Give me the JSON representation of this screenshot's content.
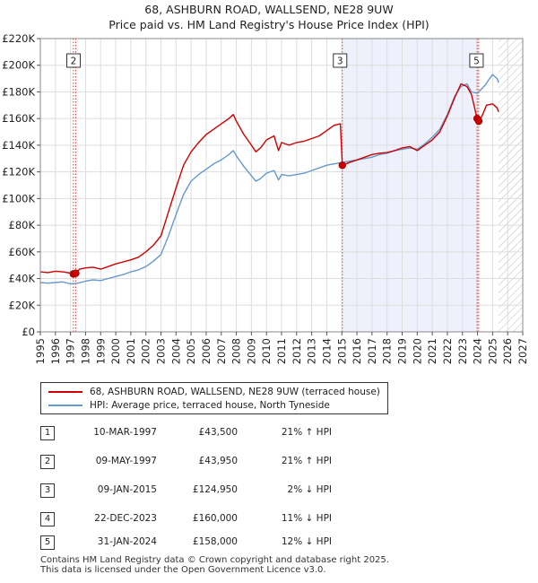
{
  "title": {
    "line1": "68, ASHBURN ROAD, WALLSEND, NE28 9UW",
    "line2": "Price paid vs. HM Land Registry's House Price Index (HPI)"
  },
  "colors": {
    "property": "#cc0000",
    "hpi": "#6699cc",
    "shade": "#eef1fb",
    "marker_line": "#dd4444"
  },
  "legend": {
    "property": "68, ASHBURN ROAD, WALLSEND, NE28 9UW (terraced house)",
    "hpi": "HPI: Average price, terraced house, North Tyneside"
  },
  "chart_data": {
    "type": "line",
    "title": "68, ASHBURN ROAD, WALLSEND, NE28 9UW — Price paid vs. HM Land Registry's House Price Index (HPI)",
    "xlabel": "",
    "ylabel": "",
    "xlim": [
      1995,
      2027
    ],
    "ylim": [
      0,
      220000
    ],
    "yticks": [
      0,
      20000,
      40000,
      60000,
      80000,
      100000,
      120000,
      140000,
      160000,
      180000,
      200000,
      220000
    ],
    "ytick_labels": [
      "£0",
      "£20K",
      "£40K",
      "£60K",
      "£80K",
      "£100K",
      "£120K",
      "£140K",
      "£160K",
      "£180K",
      "£200K",
      "£220K"
    ],
    "xticks": [
      1995,
      1996,
      1997,
      1998,
      1999,
      2000,
      2001,
      2002,
      2003,
      2004,
      2005,
      2006,
      2007,
      2008,
      2009,
      2010,
      2011,
      2012,
      2013,
      2014,
      2015,
      2016,
      2017,
      2018,
      2019,
      2020,
      2021,
      2022,
      2023,
      2024,
      2025,
      2026,
      2027
    ],
    "shaded_range": [
      2015.03,
      2024.08
    ],
    "hatched_from": 2025.4,
    "series": [
      {
        "name": "68, ASHBURN ROAD, WALLSEND, NE28 9UW (terraced house)",
        "x": [
          1995.0,
          1995.5,
          1996.0,
          1996.5,
          1997.0,
          1997.19,
          1997.35,
          1997.6,
          1998.0,
          1998.5,
          1999.0,
          1999.5,
          2000.0,
          2000.5,
          2001.0,
          2001.5,
          2002.0,
          2002.5,
          2003.0,
          2003.5,
          2004.0,
          2004.5,
          2005.0,
          2005.5,
          2006.0,
          2006.5,
          2007.0,
          2007.5,
          2007.8,
          2008.0,
          2008.5,
          2009.0,
          2009.3,
          2009.6,
          2010.0,
          2010.5,
          2010.8,
          2011.0,
          2011.5,
          2012.0,
          2012.5,
          2013.0,
          2013.5,
          2014.0,
          2014.5,
          2014.9,
          2015.03,
          2015.5,
          2016.0,
          2016.5,
          2017.0,
          2017.5,
          2018.0,
          2018.5,
          2019.0,
          2019.5,
          2020.0,
          2020.5,
          2021.0,
          2021.5,
          2022.0,
          2022.5,
          2022.9,
          2023.3,
          2023.6,
          2023.97,
          2024.08,
          2024.3,
          2024.6,
          2025.0,
          2025.3,
          2025.4
        ],
        "values": [
          45000,
          44500,
          45500,
          45000,
          44000,
          43500,
          43950,
          47000,
          48000,
          48500,
          47000,
          49000,
          51000,
          52500,
          54000,
          56000,
          60000,
          65000,
          72000,
          90000,
          108000,
          125000,
          135000,
          142000,
          148000,
          152000,
          156000,
          160000,
          163000,
          158000,
          148000,
          140000,
          135000,
          138000,
          144000,
          147000,
          136000,
          142000,
          140000,
          142000,
          143000,
          145000,
          147000,
          151000,
          155000,
          156000,
          124950,
          127000,
          129000,
          131000,
          133000,
          134000,
          134500,
          136000,
          138000,
          139000,
          136000,
          140000,
          144000,
          150000,
          162000,
          176000,
          186000,
          184000,
          178000,
          160000,
          158000,
          162000,
          170000,
          171000,
          168000,
          165000
        ]
      },
      {
        "name": "HPI: Average price, terraced house, North Tyneside",
        "x": [
          1995.0,
          1995.5,
          1996.0,
          1996.5,
          1997.0,
          1997.5,
          1998.0,
          1998.5,
          1999.0,
          1999.5,
          2000.0,
          2000.5,
          2001.0,
          2001.5,
          2002.0,
          2002.5,
          2003.0,
          2003.5,
          2004.0,
          2004.5,
          2005.0,
          2005.5,
          2006.0,
          2006.5,
          2007.0,
          2007.5,
          2007.8,
          2008.0,
          2008.5,
          2009.0,
          2009.3,
          2009.6,
          2010.0,
          2010.5,
          2010.8,
          2011.0,
          2011.5,
          2012.0,
          2012.5,
          2013.0,
          2013.5,
          2014.0,
          2014.5,
          2015.0,
          2015.5,
          2016.0,
          2016.5,
          2017.0,
          2017.5,
          2018.0,
          2018.5,
          2019.0,
          2019.5,
          2020.0,
          2020.5,
          2021.0,
          2021.5,
          2022.0,
          2022.5,
          2022.9,
          2023.3,
          2023.6,
          2024.0,
          2024.5,
          2024.8,
          2025.0,
          2025.3,
          2025.4
        ],
        "values": [
          37000,
          36500,
          37000,
          37500,
          36000,
          36500,
          38000,
          39000,
          38500,
          40000,
          41500,
          43000,
          45000,
          46500,
          49000,
          53000,
          58000,
          72000,
          88000,
          103000,
          113000,
          118000,
          122000,
          126000,
          129000,
          133000,
          136000,
          132000,
          124000,
          117000,
          113000,
          115000,
          119000,
          121000,
          114000,
          118000,
          117000,
          118000,
          119000,
          121000,
          123000,
          125000,
          126000,
          127000,
          128000,
          129000,
          130000,
          131000,
          133000,
          134000,
          136000,
          137000,
          138000,
          137000,
          141000,
          146000,
          152000,
          163000,
          177000,
          184000,
          186000,
          180000,
          179000,
          185000,
          190000,
          193000,
          190000,
          187000
        ]
      }
    ],
    "sale_markers": [
      {
        "label": "1",
        "x": 1997.19,
        "value": 43500
      },
      {
        "label": "2",
        "x": 1997.35,
        "value": 43950
      },
      {
        "label": "3",
        "x": 2015.03,
        "value": 124950
      },
      {
        "label": "4",
        "x": 2023.97,
        "value": 160000
      },
      {
        "label": "5",
        "x": 2024.08,
        "value": 158000
      }
    ],
    "boxed_annotations": [
      {
        "label": "2",
        "x": 1997.35
      },
      {
        "label": "3",
        "x": 2015.03
      },
      {
        "label": "5",
        "x": 2024.08
      }
    ]
  },
  "transactions": [
    {
      "num": "1",
      "date": "10-MAR-1997",
      "price": "£43,500",
      "hpi": "21% ↑ HPI"
    },
    {
      "num": "2",
      "date": "09-MAY-1997",
      "price": "£43,950",
      "hpi": "21% ↑ HPI"
    },
    {
      "num": "3",
      "date": "09-JAN-2015",
      "price": "£124,950",
      "hpi": "2% ↓ HPI"
    },
    {
      "num": "4",
      "date": "22-DEC-2023",
      "price": "£160,000",
      "hpi": "11% ↓ HPI"
    },
    {
      "num": "5",
      "date": "31-JAN-2024",
      "price": "£158,000",
      "hpi": "12% ↓ HPI"
    }
  ],
  "footer": {
    "line1": "Contains HM Land Registry data © Crown copyright and database right 2025.",
    "line2": "This data is licensed under the Open Government Licence v3.0."
  }
}
